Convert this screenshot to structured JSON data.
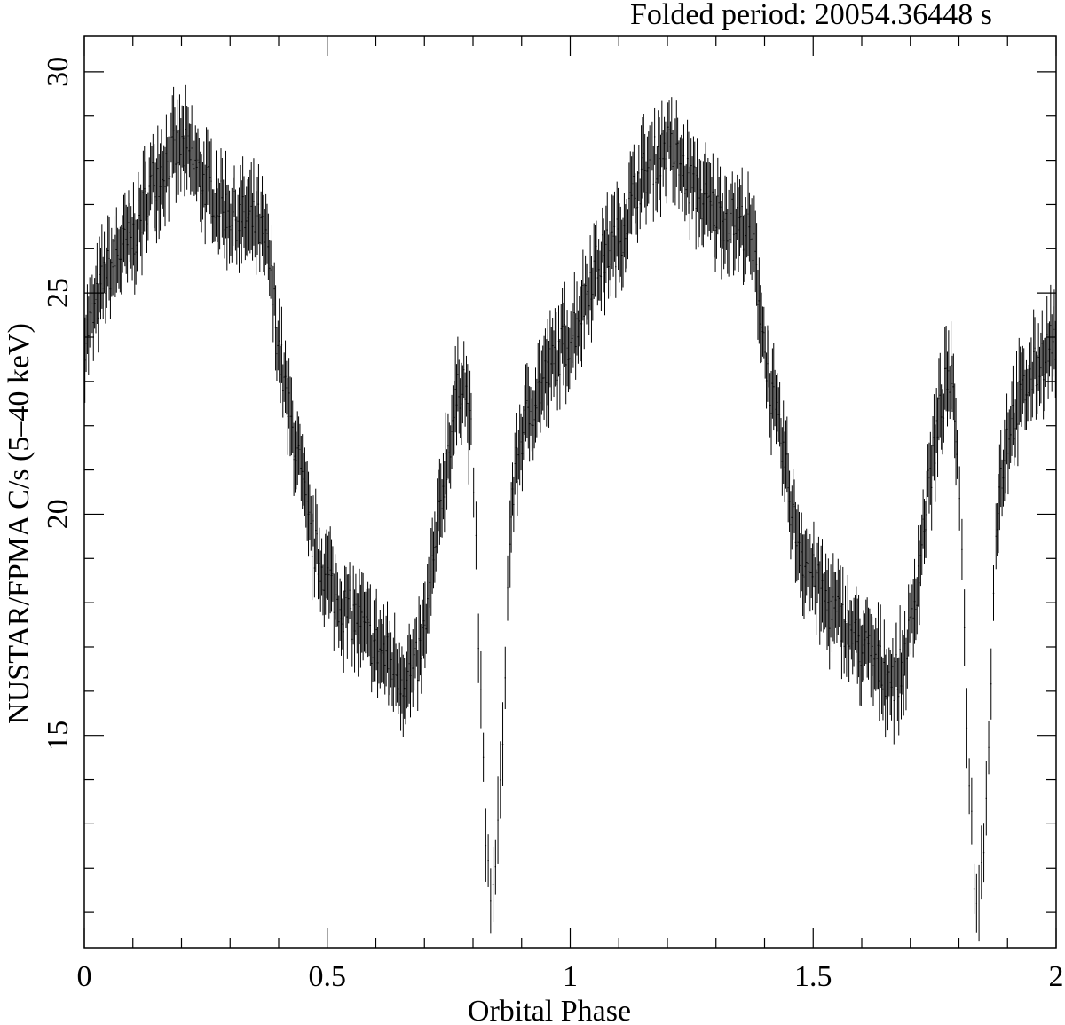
{
  "chart_data": {
    "type": "scatter",
    "title": "Folded period: 20054.36448  s",
    "xlabel": "Orbital Phase",
    "ylabel": "NUSTAR/FPMA C/s (5–40 keV)",
    "xlim": [
      0,
      2
    ],
    "ylim": [
      10.2,
      30.8
    ],
    "x_ticks": [
      0,
      0.5,
      1,
      1.5,
      2
    ],
    "x_tick_labels": [
      "0",
      "0.5",
      "1",
      "1.5",
      "2"
    ],
    "y_ticks": [
      15,
      20,
      25,
      30
    ],
    "y_tick_labels": [
      "15",
      "20",
      "25",
      "30"
    ],
    "grid": false,
    "error_bars": true,
    "series": [
      {
        "style": "crosses",
        "color": "#000000",
        "profile_note": "approximate folded light curve, one cycle repeated for phase 1-2",
        "points": [
          [
            0.0,
            24.0
          ],
          [
            0.02,
            24.5
          ],
          [
            0.04,
            25.3
          ],
          [
            0.06,
            25.7
          ],
          [
            0.08,
            26.0
          ],
          [
            0.1,
            26.2
          ],
          [
            0.12,
            26.8
          ],
          [
            0.14,
            27.5
          ],
          [
            0.16,
            27.8
          ],
          [
            0.18,
            28.1
          ],
          [
            0.2,
            28.3
          ],
          [
            0.22,
            28.0
          ],
          [
            0.24,
            27.6
          ],
          [
            0.26,
            27.3
          ],
          [
            0.28,
            27.0
          ],
          [
            0.3,
            26.8
          ],
          [
            0.32,
            26.7
          ],
          [
            0.34,
            26.6
          ],
          [
            0.36,
            26.5
          ],
          [
            0.38,
            25.8
          ],
          [
            0.4,
            23.8
          ],
          [
            0.42,
            22.3
          ],
          [
            0.44,
            21.3
          ],
          [
            0.46,
            19.8
          ],
          [
            0.48,
            19.0
          ],
          [
            0.5,
            18.6
          ],
          [
            0.52,
            18.1
          ],
          [
            0.54,
            17.8
          ],
          [
            0.56,
            17.6
          ],
          [
            0.58,
            17.3
          ],
          [
            0.6,
            17.0
          ],
          [
            0.62,
            16.8
          ],
          [
            0.64,
            16.5
          ],
          [
            0.66,
            16.3
          ],
          [
            0.68,
            16.4
          ],
          [
            0.7,
            17.3
          ],
          [
            0.72,
            19.0
          ],
          [
            0.74,
            20.8
          ],
          [
            0.76,
            22.2
          ],
          [
            0.78,
            23.2
          ],
          [
            0.8,
            21.3
          ],
          [
            0.81,
            17.6
          ],
          [
            0.82,
            14.5
          ],
          [
            0.83,
            12.0
          ],
          [
            0.84,
            11.2
          ],
          [
            0.85,
            12.3
          ],
          [
            0.86,
            14.8
          ],
          [
            0.87,
            17.8
          ],
          [
            0.88,
            20.3
          ],
          [
            0.9,
            21.8
          ],
          [
            0.92,
            22.4
          ],
          [
            0.94,
            22.9
          ],
          [
            0.96,
            23.3
          ],
          [
            0.98,
            23.7
          ]
        ]
      }
    ]
  }
}
